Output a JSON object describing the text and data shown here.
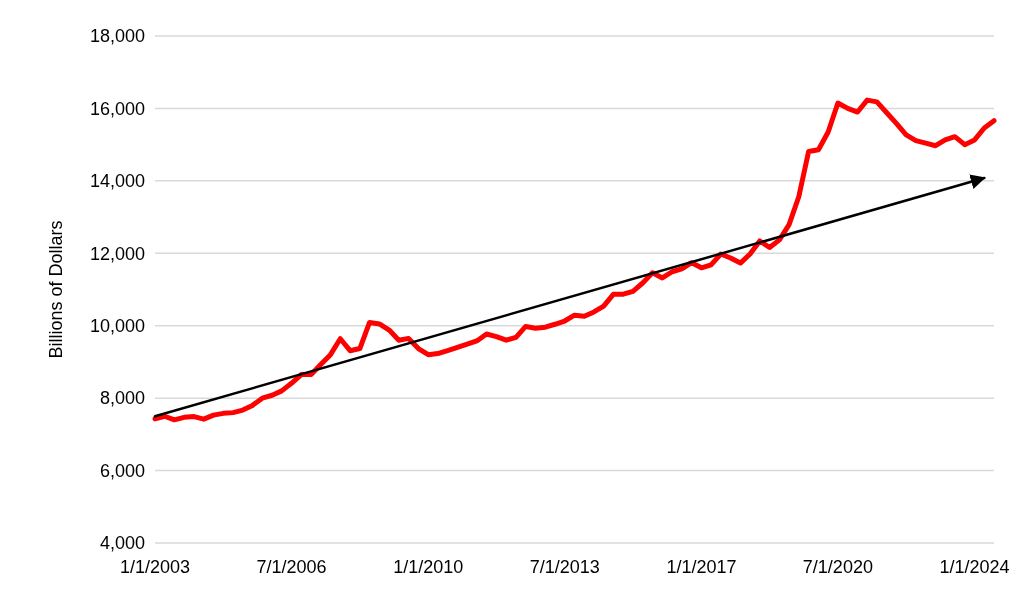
{
  "chart_data": {
    "type": "line",
    "ylabel": "Billions of Dollars",
    "x": [
      "2003-01-01",
      "2003-04-01",
      "2003-07-01",
      "2003-10-01",
      "2004-01-01",
      "2004-04-01",
      "2004-07-01",
      "2004-10-01",
      "2005-01-01",
      "2005-04-01",
      "2005-07-01",
      "2005-10-01",
      "2006-01-01",
      "2006-04-01",
      "2006-07-01",
      "2006-10-01",
      "2007-01-01",
      "2007-04-01",
      "2007-07-01",
      "2007-10-01",
      "2008-01-01",
      "2008-04-01",
      "2008-07-01",
      "2008-10-01",
      "2009-01-01",
      "2009-04-01",
      "2009-07-01",
      "2009-10-01",
      "2010-01-01",
      "2010-04-01",
      "2010-07-01",
      "2010-10-01",
      "2011-01-01",
      "2011-04-01",
      "2011-07-01",
      "2011-10-01",
      "2012-01-01",
      "2012-04-01",
      "2012-07-01",
      "2012-10-01",
      "2013-01-01",
      "2013-04-01",
      "2013-07-01",
      "2013-10-01",
      "2014-01-01",
      "2014-04-01",
      "2014-07-01",
      "2014-10-01",
      "2015-01-01",
      "2015-04-01",
      "2015-07-01",
      "2015-10-01",
      "2016-01-01",
      "2016-04-01",
      "2016-07-01",
      "2016-10-01",
      "2017-01-01",
      "2017-04-01",
      "2017-07-01",
      "2017-10-01",
      "2018-01-01",
      "2018-04-01",
      "2018-07-01",
      "2018-10-01",
      "2019-01-01",
      "2019-04-01",
      "2019-07-01",
      "2019-10-01",
      "2020-01-01",
      "2020-04-01",
      "2020-07-01",
      "2020-10-01",
      "2021-01-01",
      "2021-04-01",
      "2021-07-01",
      "2021-10-01",
      "2022-01-01",
      "2022-04-01",
      "2022-07-01",
      "2022-10-01",
      "2023-01-01",
      "2023-04-01",
      "2023-07-01",
      "2023-10-01",
      "2024-01-01",
      "2024-04-01",
      "2024-07-01"
    ],
    "series": [
      {
        "color": "#ff0000",
        "values": [
          7430,
          7500,
          7400,
          7470,
          7490,
          7420,
          7530,
          7580,
          7600,
          7670,
          7800,
          8000,
          8080,
          8200,
          8410,
          8650,
          8650,
          8930,
          9200,
          9640,
          9310,
          9370,
          10090,
          10050,
          9880,
          9600,
          9650,
          9370,
          9200,
          9230,
          9310,
          9400,
          9490,
          9580,
          9770,
          9700,
          9600,
          9680,
          9980,
          9930,
          9960,
          10040,
          10130,
          10290,
          10260,
          10380,
          10540,
          10870,
          10870,
          10950,
          11180,
          11460,
          11320,
          11490,
          11570,
          11740,
          11600,
          11680,
          11980,
          11870,
          11730,
          11980,
          12340,
          12160,
          12370,
          12790,
          13560,
          14810,
          14860,
          15350,
          16150,
          16000,
          15900,
          16230,
          16180,
          15880,
          15580,
          15270,
          15110,
          15040,
          14970,
          15130,
          15220,
          15000,
          15130,
          15460,
          15660
        ]
      },
      {
        "type": "line",
        "color": "#000000",
        "x": [
          "2003-01-01",
          "2024-04-01"
        ],
        "values": [
          7500,
          14080
        ]
      }
    ],
    "xlim": [
      "2003-01-01",
      "2024-07-01"
    ],
    "xticks": [
      {
        "value": "2003-01-01",
        "label": "1/1/2003"
      },
      {
        "value": "2006-07-01",
        "label": "7/1/2006"
      },
      {
        "value": "2010-01-01",
        "label": "1/1/2010"
      },
      {
        "value": "2013-07-01",
        "label": "7/1/2013"
      },
      {
        "value": "2017-01-01",
        "label": "1/1/2017"
      },
      {
        "value": "2020-07-01",
        "label": "7/1/2020"
      },
      {
        "value": "2024-01-01",
        "label": "1/1/2024"
      }
    ],
    "ylim": [
      4000,
      18000
    ],
    "yticks": [
      {
        "value": 4000,
        "label": "4,000"
      },
      {
        "value": 6000,
        "label": "6,000"
      },
      {
        "value": 8000,
        "label": "8,000"
      },
      {
        "value": 10000,
        "label": "10,000"
      },
      {
        "value": 12000,
        "label": "12,000"
      },
      {
        "value": 14000,
        "label": "14,000"
      },
      {
        "value": 16000,
        "label": "16,000"
      },
      {
        "value": 18000,
        "label": "18,000"
      }
    ],
    "grid": "y",
    "line_style": "solid"
  }
}
